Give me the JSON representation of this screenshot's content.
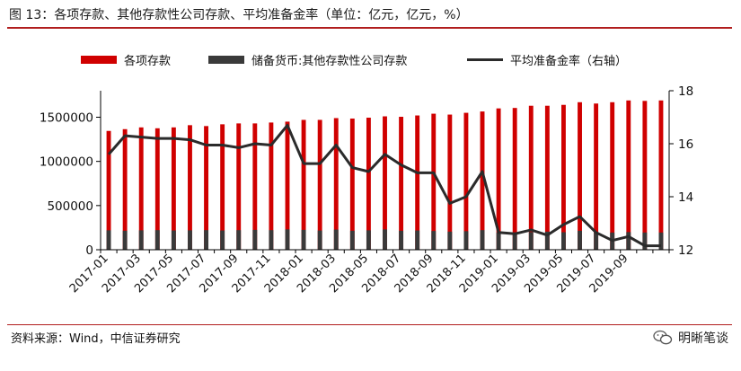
{
  "title": "图 13：各项存款、其他存款性公司存款、平均准备金率（单位：亿元，亿元，%）",
  "source": "资料来源：Wind，中信证券研究",
  "watermark": "明晰笔谈",
  "colors": {
    "deposits": "#d00000",
    "other_deposits": "#3a3a3a",
    "rate_line": "#2b2b2b",
    "accent_rule": "#b11e1e"
  },
  "chart_data": {
    "type": "bar",
    "categories": [
      "2017-01",
      "2017-02",
      "2017-03",
      "2017-04",
      "2017-05",
      "2017-06",
      "2017-07",
      "2017-08",
      "2017-09",
      "2017-10",
      "2017-11",
      "2017-12",
      "2018-01",
      "2018-02",
      "2018-03",
      "2018-04",
      "2018-05",
      "2018-06",
      "2018-07",
      "2018-08",
      "2018-09",
      "2018-10",
      "2018-11",
      "2018-12",
      "2019-01",
      "2019-02",
      "2019-03",
      "2019-04",
      "2019-05",
      "2019-06",
      "2019-07",
      "2019-08",
      "2019-09",
      "2019-10",
      "2019-11"
    ],
    "x_tick_labels": [
      "2017-01",
      "2017-03",
      "2017-05",
      "2017-07",
      "2017-09",
      "2017-11",
      "2018-01",
      "2018-03",
      "2018-05",
      "2018-07",
      "2018-09",
      "2018-11",
      "2019-01",
      "2019-03",
      "2019-05",
      "2019-07",
      "2019-09"
    ],
    "series": [
      {
        "name": "各项存款",
        "axis": "left",
        "values": [
          1345000,
          1365000,
          1385000,
          1375000,
          1385000,
          1410000,
          1400000,
          1420000,
          1430000,
          1430000,
          1440000,
          1450000,
          1470000,
          1470000,
          1490000,
          1485000,
          1495000,
          1510000,
          1505000,
          1520000,
          1540000,
          1530000,
          1550000,
          1565000,
          1600000,
          1605000,
          1630000,
          1630000,
          1640000,
          1670000,
          1655000,
          1670000,
          1690000,
          1685000,
          1690000
        ]
      },
      {
        "name": "储备货币:其他存款性公司存款",
        "axis": "left",
        "values": [
          220000,
          215000,
          220000,
          222000,
          218000,
          220000,
          222000,
          218000,
          222000,
          225000,
          222000,
          230000,
          225000,
          218000,
          228000,
          215000,
          220000,
          230000,
          215000,
          218000,
          212000,
          205000,
          210000,
          222000,
          195000,
          195000,
          200000,
          205000,
          198000,
          215000,
          195000,
          195000,
          200000,
          195000,
          195000
        ]
      },
      {
        "name": "平均准备金率（右轴）",
        "axis": "right",
        "type": "line",
        "values": [
          15.6,
          16.3,
          16.25,
          16.2,
          16.2,
          16.15,
          15.95,
          15.95,
          15.85,
          16.0,
          15.95,
          16.7,
          15.25,
          15.25,
          15.95,
          15.1,
          14.95,
          15.6,
          15.2,
          14.9,
          14.9,
          13.75,
          14.0,
          14.95,
          12.65,
          12.6,
          12.75,
          12.55,
          12.95,
          13.25,
          12.65,
          12.35,
          12.5,
          12.15,
          12.15
        ]
      }
    ],
    "y_left": {
      "ylim": [
        0,
        1800000
      ],
      "ticks": [
        0,
        500000,
        1000000,
        1500000
      ]
    },
    "y_right": {
      "ylim": [
        12,
        18
      ],
      "ticks": [
        12,
        14,
        16,
        18
      ]
    },
    "legend": {
      "placement": "top"
    },
    "grid": false
  }
}
